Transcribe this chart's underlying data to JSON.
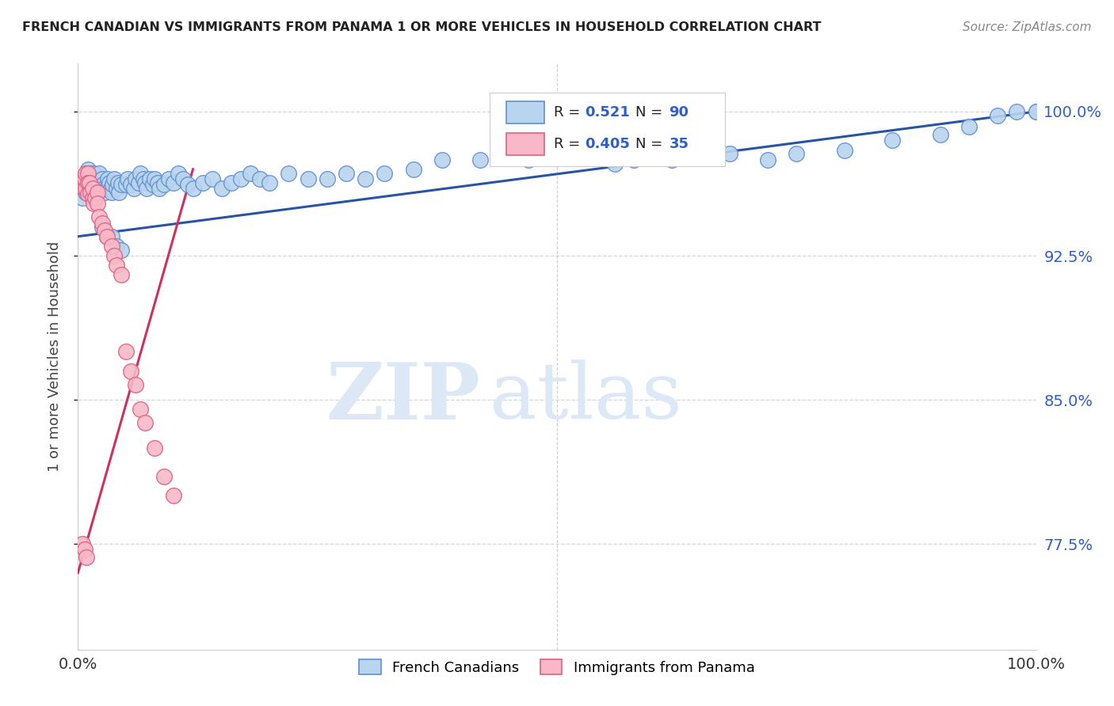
{
  "title": "FRENCH CANADIAN VS IMMIGRANTS FROM PANAMA 1 OR MORE VEHICLES IN HOUSEHOLD CORRELATION CHART",
  "source": "Source: ZipAtlas.com",
  "ylabel": "1 or more Vehicles in Household",
  "blue_R": 0.521,
  "blue_N": 90,
  "pink_R": 0.405,
  "pink_N": 35,
  "blue_color": "#b8d4ee",
  "pink_color": "#f8b8c8",
  "blue_edge_color": "#6090d0",
  "pink_edge_color": "#e06080",
  "blue_line_color": "#2855a0",
  "pink_line_color": "#d03060",
  "legend_blue_label": "French Canadians",
  "legend_pink_label": "Immigrants from Panama",
  "watermark_zip": "ZIP",
  "watermark_atlas": "atlas",
  "background_color": "#ffffff",
  "grid_color": "#c8d8e8",
  "xlim": [
    0.0,
    1.0
  ],
  "ylim": [
    0.72,
    1.025
  ],
  "y_ticks": [
    0.775,
    0.85,
    0.925,
    1.0
  ],
  "y_tick_labels": [
    "77.5%",
    "85.0%",
    "92.5%",
    "100.0%"
  ],
  "blue_x": [
    0.005,
    0.007,
    0.008,
    0.01,
    0.01,
    0.012,
    0.013,
    0.015,
    0.016,
    0.017,
    0.018,
    0.02,
    0.02,
    0.022,
    0.023,
    0.025,
    0.026,
    0.027,
    0.028,
    0.03,
    0.031,
    0.033,
    0.034,
    0.035,
    0.036,
    0.038,
    0.04,
    0.042,
    0.043,
    0.045,
    0.05,
    0.052,
    0.055,
    0.058,
    0.06,
    0.063,
    0.065,
    0.068,
    0.07,
    0.072,
    0.075,
    0.078,
    0.08,
    0.083,
    0.085,
    0.09,
    0.095,
    0.1,
    0.105,
    0.11,
    0.115,
    0.12,
    0.13,
    0.14,
    0.15,
    0.16,
    0.17,
    0.18,
    0.19,
    0.2,
    0.22,
    0.24,
    0.26,
    0.28,
    0.3,
    0.32,
    0.35,
    0.38,
    0.42,
    0.47,
    0.52,
    0.56,
    0.58,
    0.62,
    0.68,
    0.72,
    0.75,
    0.8,
    0.85,
    0.9,
    0.93,
    0.96,
    0.98,
    1.0,
    1.0,
    0.025,
    0.03,
    0.035,
    0.04,
    0.045
  ],
  "blue_y": [
    0.955,
    0.962,
    0.958,
    0.965,
    0.97,
    0.96,
    0.968,
    0.96,
    0.968,
    0.963,
    0.955,
    0.965,
    0.96,
    0.968,
    0.962,
    0.965,
    0.962,
    0.96,
    0.958,
    0.96,
    0.965,
    0.963,
    0.96,
    0.958,
    0.962,
    0.965,
    0.96,
    0.963,
    0.958,
    0.962,
    0.962,
    0.965,
    0.962,
    0.96,
    0.965,
    0.963,
    0.968,
    0.965,
    0.963,
    0.96,
    0.965,
    0.962,
    0.965,
    0.963,
    0.96,
    0.962,
    0.965,
    0.963,
    0.968,
    0.965,
    0.962,
    0.96,
    0.963,
    0.965,
    0.96,
    0.963,
    0.965,
    0.968,
    0.965,
    0.963,
    0.968,
    0.965,
    0.965,
    0.968,
    0.965,
    0.968,
    0.97,
    0.975,
    0.975,
    0.975,
    0.978,
    0.973,
    0.975,
    0.975,
    0.978,
    0.975,
    0.978,
    0.98,
    0.985,
    0.988,
    0.992,
    0.998,
    1.0,
    1.0,
    1.0,
    0.94,
    0.935,
    0.935,
    0.93,
    0.928
  ],
  "pink_x": [
    0.005,
    0.006,
    0.007,
    0.008,
    0.008,
    0.01,
    0.01,
    0.01,
    0.012,
    0.013,
    0.015,
    0.015,
    0.016,
    0.018,
    0.02,
    0.02,
    0.022,
    0.025,
    0.028,
    0.03,
    0.035,
    0.038,
    0.04,
    0.045,
    0.05,
    0.055,
    0.06,
    0.065,
    0.07,
    0.08,
    0.09,
    0.1,
    0.005,
    0.007,
    0.009
  ],
  "pink_y": [
    0.965,
    0.96,
    0.965,
    0.968,
    0.96,
    0.968,
    0.963,
    0.957,
    0.963,
    0.958,
    0.955,
    0.96,
    0.952,
    0.955,
    0.958,
    0.952,
    0.945,
    0.942,
    0.938,
    0.935,
    0.93,
    0.925,
    0.92,
    0.915,
    0.875,
    0.865,
    0.858,
    0.845,
    0.838,
    0.825,
    0.81,
    0.8,
    0.775,
    0.772,
    0.768
  ],
  "blue_line_x": [
    0.0,
    1.0
  ],
  "blue_line_y": [
    0.935,
    1.0
  ],
  "pink_line_x": [
    0.0,
    0.12
  ],
  "pink_line_y": [
    0.76,
    0.97
  ]
}
